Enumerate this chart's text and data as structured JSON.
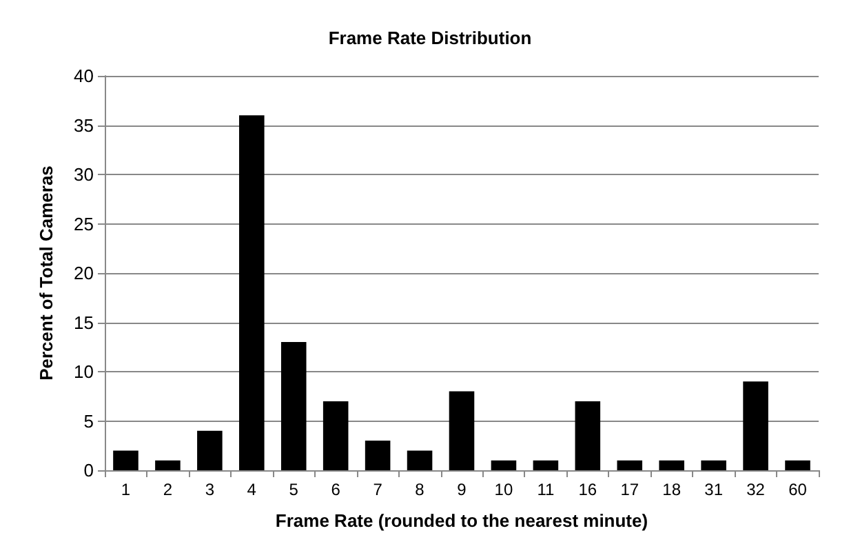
{
  "chart_data": {
    "type": "bar",
    "title": "Frame Rate Distribution",
    "xlabel": "Frame Rate (rounded to the nearest minute)",
    "ylabel": "Percent of Total Cameras",
    "categories": [
      "1",
      "2",
      "3",
      "4",
      "5",
      "6",
      "7",
      "8",
      "9",
      "10",
      "11",
      "16",
      "17",
      "18",
      "31",
      "32",
      "60"
    ],
    "values": [
      2,
      1,
      4,
      36,
      13,
      7,
      3,
      2,
      8,
      1,
      1,
      7,
      1,
      1,
      1,
      9,
      1
    ],
    "color": "#000000",
    "ylim": [
      0,
      40
    ],
    "yticks": [
      0,
      5,
      10,
      15,
      20,
      25,
      30,
      35,
      40
    ],
    "grid": "y"
  }
}
